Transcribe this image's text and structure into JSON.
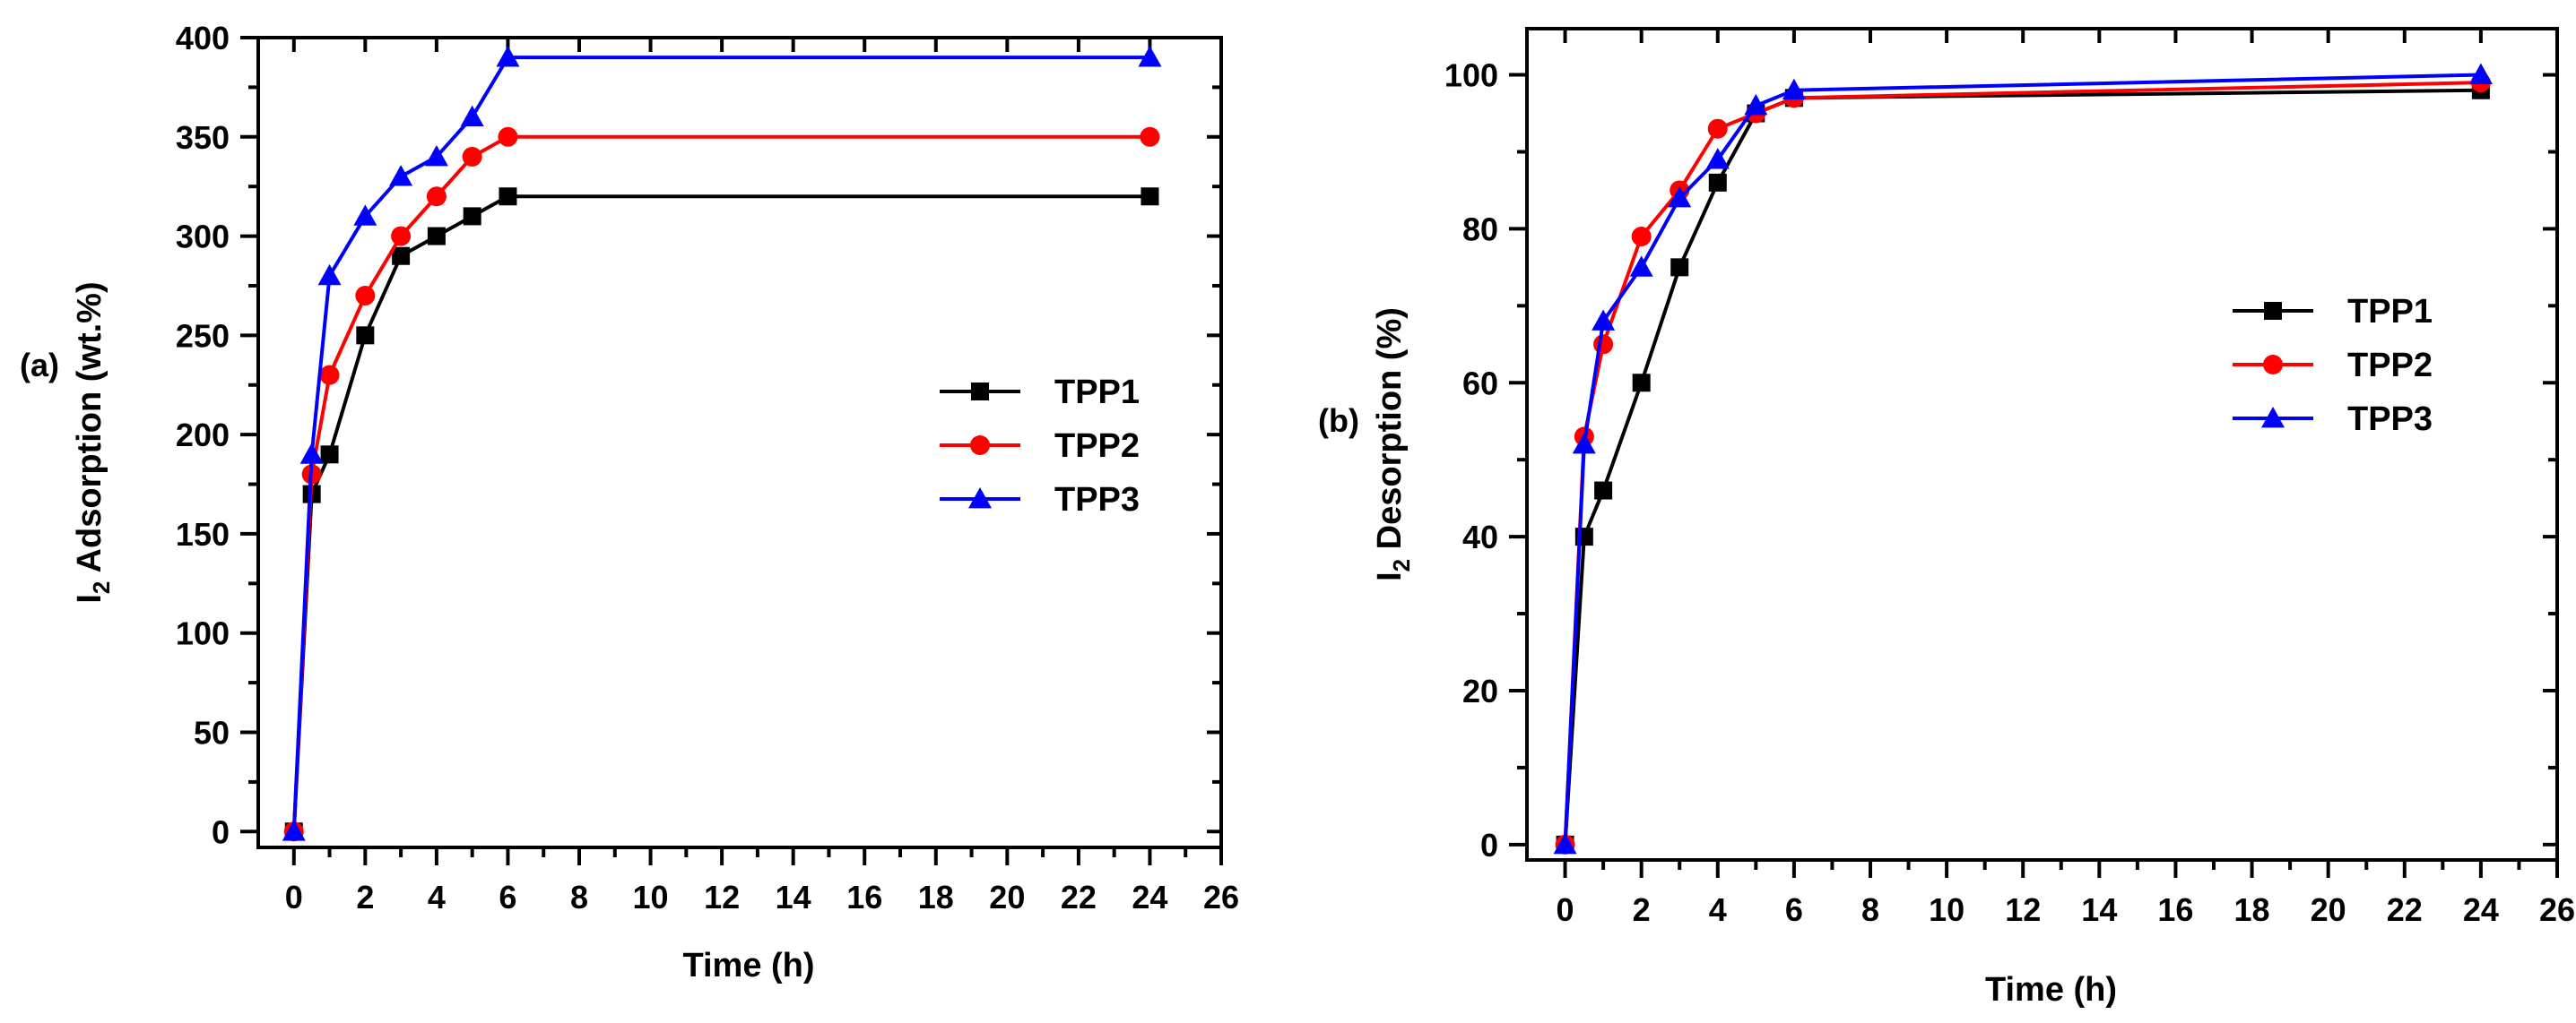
{
  "chart_data": [
    {
      "type": "line",
      "panel_label": "(a)",
      "xlabel": "Time (h)",
      "ylabel_main": "I",
      "ylabel_sub": "2",
      "ylabel_rest": " Adsorption (wt.%)",
      "xlim": [
        -1,
        26
      ],
      "ylim": [
        -8,
        400
      ],
      "xticks": [
        0,
        2,
        4,
        6,
        8,
        10,
        12,
        14,
        16,
        18,
        20,
        22,
        24,
        26
      ],
      "yticks": [
        0,
        50,
        100,
        150,
        200,
        250,
        300,
        350,
        400
      ],
      "x": [
        0,
        0.5,
        1,
        2,
        3,
        4,
        5,
        6,
        24
      ],
      "legend_position": "center-right",
      "series": [
        {
          "name": "TPP1",
          "color": "#000000",
          "marker": "square",
          "values": [
            0,
            170,
            190,
            250,
            290,
            300,
            310,
            320,
            320
          ]
        },
        {
          "name": "TPP2",
          "color": "#ff0000",
          "marker": "circle",
          "values": [
            0,
            180,
            230,
            270,
            300,
            320,
            340,
            350,
            350
          ]
        },
        {
          "name": "TPP3",
          "color": "#0000ff",
          "marker": "triangle",
          "values": [
            0,
            190,
            280,
            310,
            330,
            340,
            360,
            390,
            390
          ]
        }
      ]
    },
    {
      "type": "line",
      "panel_label": "(b)",
      "xlabel": "Time (h)",
      "ylabel_main": "I",
      "ylabel_sub": "2",
      "ylabel_rest": " Desorption (%)",
      "xlim": [
        -1,
        26
      ],
      "ylim": [
        -2,
        106
      ],
      "xticks": [
        0,
        2,
        4,
        6,
        8,
        10,
        12,
        14,
        16,
        18,
        20,
        22,
        24,
        26
      ],
      "yticks": [
        0,
        20,
        40,
        60,
        80,
        100
      ],
      "x": [
        0,
        0.5,
        1,
        2,
        3,
        4,
        5,
        6,
        24
      ],
      "legend_position": "top-right",
      "series": [
        {
          "name": "TPP1",
          "color": "#000000",
          "marker": "square",
          "values": [
            0,
            40,
            46,
            60,
            75,
            86,
            95,
            97,
            98
          ]
        },
        {
          "name": "TPP2",
          "color": "#ff0000",
          "marker": "circle",
          "values": [
            0,
            53,
            65,
            79,
            85,
            93,
            95,
            97,
            99
          ]
        },
        {
          "name": "TPP3",
          "color": "#0000ff",
          "marker": "triangle",
          "values": [
            0,
            52,
            68,
            75,
            84,
            89,
            96,
            98,
            100
          ]
        }
      ]
    }
  ]
}
